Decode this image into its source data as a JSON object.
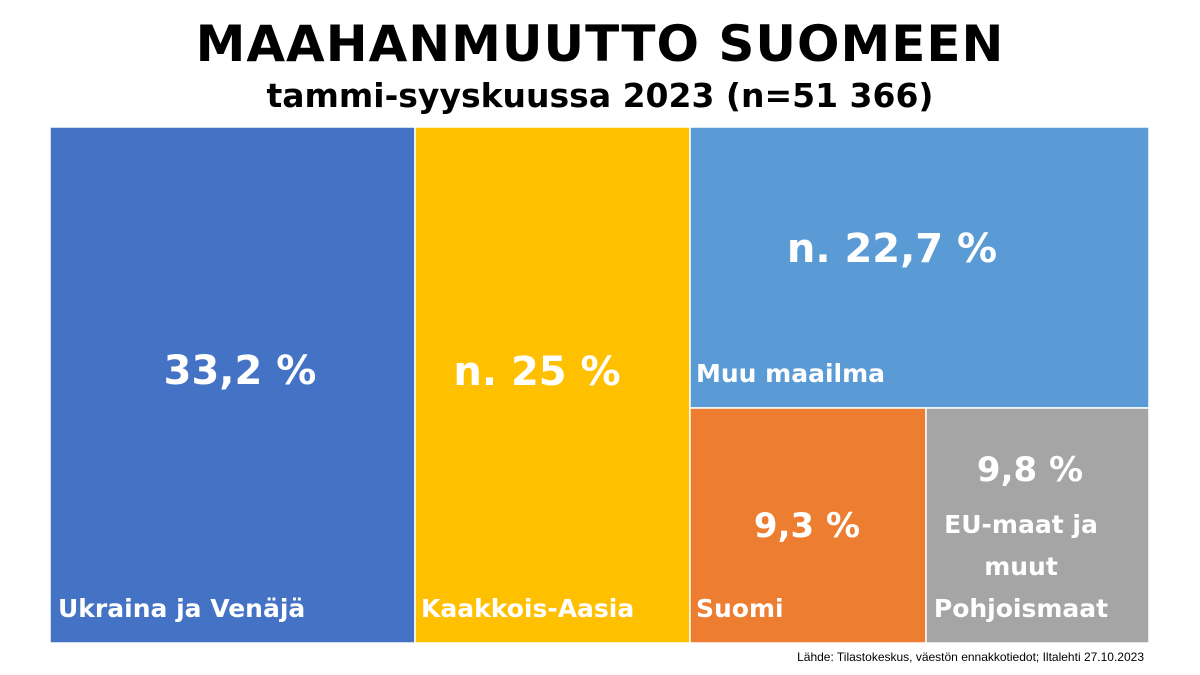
{
  "title": "MAAHANMUUTTO SUOMEEN",
  "subtitle": "tammi-syyskuussa 2023 (n=51 366)",
  "source": "Lähde: Tilastokeskus, väestön ennakkotiedot; Iltalehti 27.10.2023",
  "chart_data": {
    "type": "treemap",
    "title": "MAAHANMUUTTO SUOMEEN",
    "subtitle": "tammi-syyskuussa 2023 (n=51 366)",
    "unit": "%",
    "items": [
      {
        "category": "Ukraina ja Venäjä",
        "value": 33.2,
        "value_label": "33,2 %",
        "color": "#4472C4"
      },
      {
        "category": "Kaakkois-Aasia",
        "value": 25,
        "value_label": "n. 25 %",
        "color": "#FFC000"
      },
      {
        "category": "Muu maailma",
        "value": 22.7,
        "value_label": "n. 22,7 %",
        "color": "#5B9BD5"
      },
      {
        "category": "Suomi",
        "value": 9.3,
        "value_label": "9,3 %",
        "color": "#ED7D31"
      },
      {
        "category": "EU-maat ja muut Pohjoismaat",
        "value": 9.8,
        "value_label": "9,8 %",
        "color": "#A5A5A5"
      }
    ],
    "category_label_lines": [
      [
        "Ukraina ja Venäjä"
      ],
      [
        "Kaakkois-Aasia"
      ],
      [
        "Muu maailma"
      ],
      [
        "Suomi"
      ],
      [
        "EU-maat ja",
        "muut",
        "Pohjoismaat"
      ]
    ]
  }
}
